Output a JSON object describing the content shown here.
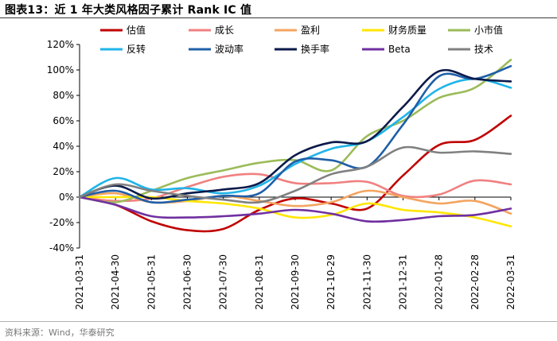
{
  "header": {
    "title": "图表13：近 1 年大类风格因子累计 Rank IC 值"
  },
  "footer": {
    "source": "资料来源：Wind，华泰研究"
  },
  "chart_data": {
    "type": "line",
    "title": "近 1 年大类风格因子累计 Rank IC 值",
    "xlabel": "",
    "ylabel": "",
    "ylim": [
      -40,
      120
    ],
    "yticks": [
      -40,
      -20,
      0,
      20,
      40,
      60,
      80,
      100,
      120
    ],
    "ytick_labels": [
      "-40%",
      "-20%",
      "0%",
      "20%",
      "40%",
      "60%",
      "80%",
      "100%",
      "120%"
    ],
    "categories": [
      "2021-03-31",
      "2021-04-30",
      "2021-05-31",
      "2021-06-30",
      "2021-07-30",
      "2021-08-31",
      "2021-09-30",
      "2021-10-29",
      "2021-11-30",
      "2021-12-31",
      "2022-01-28",
      "2022-02-28",
      "2022-03-31"
    ],
    "series": [
      {
        "name": "估值",
        "color": "#c00000",
        "values": [
          0,
          -6,
          -19,
          -26,
          -25,
          -10,
          -1,
          -5,
          -9,
          17,
          41,
          45,
          64
        ]
      },
      {
        "name": "成长",
        "color": "#f08080",
        "values": [
          0,
          -3,
          -1,
          8,
          16,
          18,
          11,
          11,
          12,
          1,
          2,
          13,
          10
        ]
      },
      {
        "name": "盈利",
        "color": "#f4a460",
        "values": [
          0,
          3,
          -4,
          -3,
          1,
          -3,
          -7,
          -4,
          5,
          0,
          -5,
          -3,
          -13
        ]
      },
      {
        "name": "财务质量",
        "color": "#ffe600",
        "values": [
          0,
          0,
          0,
          -3,
          -5,
          -9,
          -16,
          -14,
          -5,
          -10,
          -12,
          -16,
          -23
        ]
      },
      {
        "name": "小市值",
        "color": "#9bbb59",
        "values": [
          0,
          -4,
          5,
          15,
          21,
          27,
          29,
          21,
          48,
          60,
          78,
          86,
          108
        ]
      },
      {
        "name": "反转",
        "color": "#1fb4e9",
        "values": [
          0,
          15,
          6,
          7,
          3,
          9,
          26,
          38,
          44,
          63,
          85,
          93,
          86
        ]
      },
      {
        "name": "波动率",
        "color": "#1f5fa8",
        "values": [
          0,
          5,
          -4,
          -2,
          1,
          3,
          28,
          29,
          24,
          57,
          95,
          93,
          103
        ]
      },
      {
        "name": "换手率",
        "color": "#0b1a4a",
        "values": [
          0,
          9,
          -1,
          3,
          6,
          11,
          33,
          43,
          44,
          71,
          99,
          93,
          91
        ]
      },
      {
        "name": "Beta",
        "color": "#7030a0",
        "values": [
          0,
          -6,
          -15,
          -16,
          -15,
          -13,
          -10,
          -13,
          -19,
          -18,
          -15,
          -14,
          -9
        ]
      },
      {
        "name": "技术",
        "color": "#808080",
        "values": [
          0,
          10,
          5,
          1,
          -2,
          -4,
          5,
          18,
          24,
          39,
          35,
          36,
          34
        ]
      }
    ]
  }
}
